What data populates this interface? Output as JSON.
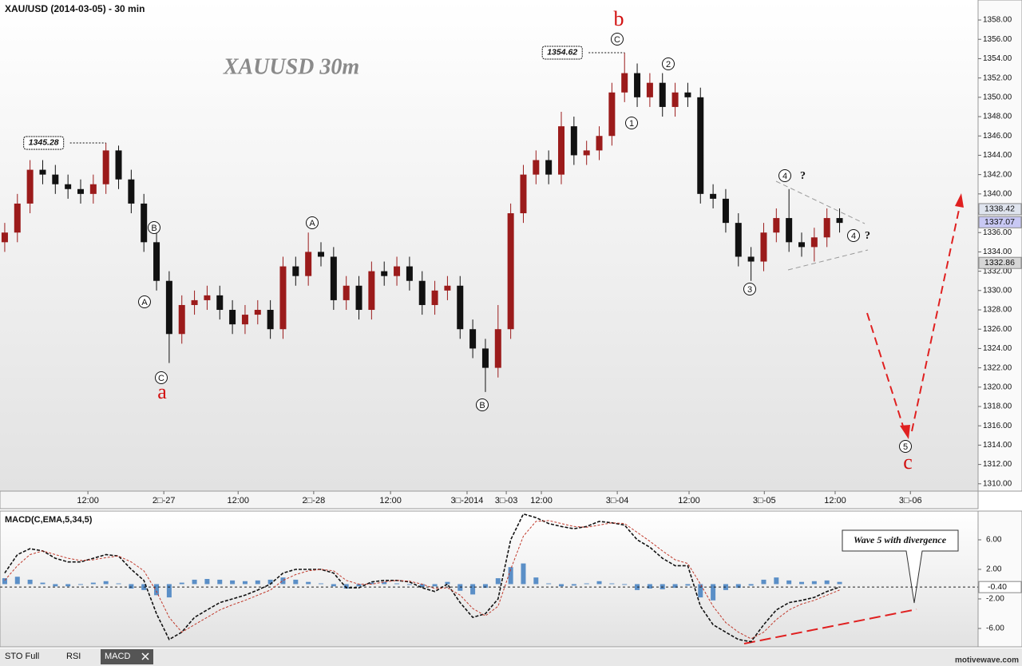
{
  "header": "XAU/USD (2014-03-05) - 30 min",
  "watermark": "XAUUSD  30m",
  "chart_data": [
    {
      "type": "candlestick",
      "x": [
        1.5,
        5.5,
        9.5,
        13.5,
        17.5,
        21.5,
        25.5,
        29.5,
        33.5,
        37.5,
        41.5,
        45.5,
        49.5,
        53.5,
        57.5,
        61.5,
        65.5,
        69.5,
        73.5,
        77.5,
        81.5,
        85.5,
        89.5,
        93.5,
        97.5,
        101.5,
        105.5,
        109.5,
        113.5,
        117.5,
        121.5,
        125.5,
        129.5,
        133.5,
        137.5,
        141.5,
        145.5,
        149.5,
        153.5,
        157.5,
        161.5,
        165.5,
        169.5,
        173.5,
        177.5,
        181.5,
        185.5,
        189.5,
        193.5,
        197.5,
        201.5,
        205.5,
        209.5,
        213.5,
        217.5,
        221.5,
        225.5,
        229.5,
        233.5,
        237.5,
        241.5,
        245.5,
        249.5,
        253.5,
        257.5,
        261.5,
        265.5
      ],
      "open": [
        1335,
        1336,
        1339,
        1342.5,
        1342,
        1341,
        1340.5,
        1340,
        1341,
        1344.5,
        1341.5,
        1339,
        1335,
        1331,
        1325.5,
        1328.5,
        1329,
        1329.5,
        1328,
        1326.5,
        1327.5,
        1328,
        1326,
        1332.5,
        1331.5,
        1334,
        1333.5,
        1329,
        1330.5,
        1328,
        1332,
        1331.5,
        1332.5,
        1331,
        1328.5,
        1330,
        1330.5,
        1326,
        1324,
        1322,
        1326,
        1338,
        1342,
        1343.5,
        1342,
        1347,
        1344,
        1344.5,
        1346,
        1350.5,
        1352.5,
        1350,
        1351.5,
        1349,
        1350.5,
        1350,
        1340,
        1339.5,
        1337,
        1333.5,
        1333,
        1336,
        1337.5,
        1335,
        1334.5,
        1335.5,
        1337.5
      ],
      "high": [
        1337,
        1340,
        1343.5,
        1343.5,
        1343,
        1342,
        1341.5,
        1342,
        1345.28,
        1345,
        1342.5,
        1340,
        1336,
        1332,
        1329.5,
        1330,
        1330.5,
        1330.5,
        1329,
        1328.5,
        1329,
        1329,
        1333.5,
        1333.5,
        1336,
        1335,
        1334.5,
        1331.5,
        1331.5,
        1333,
        1333,
        1333.5,
        1333.5,
        1332,
        1331,
        1331.5,
        1331.5,
        1327,
        1325,
        1328.5,
        1339,
        1343,
        1344.5,
        1344.5,
        1348.5,
        1348,
        1345.5,
        1347,
        1351.5,
        1354.62,
        1353.5,
        1352.5,
        1352.5,
        1351.5,
        1351.5,
        1351,
        1341,
        1340.5,
        1338,
        1334.5,
        1337,
        1338.5,
        1340.5,
        1336,
        1336.5,
        1338.5,
        1338.5
      ],
      "low": [
        1334,
        1335,
        1338,
        1341,
        1340,
        1339.5,
        1339,
        1339,
        1340,
        1340.5,
        1338,
        1334,
        1330,
        1322.5,
        1324.5,
        1327.5,
        1328,
        1327,
        1325.5,
        1325.5,
        1326.5,
        1325,
        1325,
        1330.5,
        1330.5,
        1332.5,
        1328,
        1328,
        1327,
        1327,
        1330.5,
        1330.5,
        1330,
        1327.5,
        1327.5,
        1329,
        1325,
        1323,
        1319.5,
        1321,
        1325,
        1337,
        1341,
        1341,
        1341,
        1343,
        1343,
        1343.5,
        1345,
        1349.5,
        1349,
        1349,
        1348,
        1348,
        1349,
        1339,
        1338.5,
        1336,
        1332.5,
        1331,
        1332,
        1335,
        1334,
        1333.5,
        1333,
        1334.5,
        1336
      ],
      "close": [
        1336,
        1339,
        1342.5,
        1342,
        1341,
        1340.5,
        1340,
        1341,
        1344.5,
        1341.5,
        1339,
        1335,
        1331,
        1325.5,
        1328.5,
        1329,
        1329.5,
        1328,
        1326.5,
        1327.5,
        1328,
        1326,
        1332.5,
        1331.5,
        1334,
        1333.5,
        1329,
        1330.5,
        1328,
        1332,
        1331.5,
        1332.5,
        1331,
        1328.5,
        1330,
        1330.5,
        1326,
        1324,
        1322,
        1326,
        1338,
        1342,
        1343.5,
        1342,
        1347,
        1344,
        1344.5,
        1346,
        1350.5,
        1352.5,
        1350,
        1351.5,
        1349,
        1350.5,
        1350,
        1340,
        1339.5,
        1337,
        1333.5,
        1333,
        1336,
        1337.5,
        1335,
        1334.5,
        1335.5,
        1337.5,
        1337
      ],
      "up_color": "#9b1b1b",
      "down_color": "#111111",
      "xlim": [
        0,
        309.3
      ],
      "xticks": [
        {
          "value": 27.8,
          "label": "12:00"
        },
        {
          "value": 51.8,
          "label": "2□-27"
        },
        {
          "value": 75.3,
          "label": "12:00"
        },
        {
          "value": 99.2,
          "label": "2□-28"
        },
        {
          "value": 123.5,
          "label": "12:00"
        },
        {
          "value": 147.7,
          "label": "3□-2014"
        },
        {
          "value": 160.1,
          "label": "3□-03"
        },
        {
          "value": 171.2,
          "label": "12:00"
        },
        {
          "value": 195.2,
          "label": "3□-04"
        },
        {
          "value": 217.9,
          "label": "12:00"
        },
        {
          "value": 241.7,
          "label": "3□-05"
        },
        {
          "value": 264.1,
          "label": "12:00"
        },
        {
          "value": 287.9,
          "label": "3□-06"
        }
      ],
      "ylim": [
        1309.24,
        1360.07
      ],
      "yticks": [
        {
          "value": 1310,
          "label": "1310.00"
        },
        {
          "value": 1312,
          "label": "1312.00"
        },
        {
          "value": 1314,
          "label": "1314.00"
        },
        {
          "value": 1316,
          "label": "1316.00"
        },
        {
          "value": 1318,
          "label": "1318.00"
        },
        {
          "value": 1320,
          "label": "1320.00"
        },
        {
          "value": 1322,
          "label": "1322.00"
        },
        {
          "value": 1324,
          "label": "1324.00"
        },
        {
          "value": 1326,
          "label": "1326.00"
        },
        {
          "value": 1328,
          "label": "1328.00"
        },
        {
          "value": 1330,
          "label": "1330.00"
        },
        {
          "value": 1332,
          "label": "1332.00"
        },
        {
          "value": 1334,
          "label": "1334.00"
        },
        {
          "value": 1336,
          "label": "1336.00"
        },
        {
          "value": 1338,
          "label": "1338.00"
        },
        {
          "value": 1340,
          "label": "1340.00"
        },
        {
          "value": 1342,
          "label": "1342.00"
        },
        {
          "value": 1344,
          "label": "1344.00"
        },
        {
          "value": 1346,
          "label": "1346.00"
        },
        {
          "value": 1348,
          "label": "1348.00"
        },
        {
          "value": 1350,
          "label": "1350.00"
        },
        {
          "value": 1352,
          "label": "1352.00"
        },
        {
          "value": 1354,
          "label": "1354.00"
        },
        {
          "value": 1356,
          "label": "1356.00"
        },
        {
          "value": 1358,
          "label": "1358.00"
        }
      ],
      "grid": false,
      "price_tags": [
        {
          "value": 1338.42,
          "color": "#dfe4ee"
        },
        {
          "value": 1337.07,
          "color": "#c8c8f4"
        },
        {
          "value": 1332.86,
          "color": "#d6d6d6"
        }
      ],
      "price_boxes": [
        {
          "value": 1345.28,
          "x": 33.5
        },
        {
          "value": 1354.62,
          "x": 197.5
        }
      ],
      "wave_degree_labels": [
        "a",
        "b",
        "c"
      ],
      "wave_circled_labels": [
        "B",
        "A",
        "C",
        "A",
        "B",
        "C",
        "1",
        "2",
        "3",
        "4",
        "4",
        "5"
      ],
      "question_marks": [
        "?",
        "?"
      ]
    },
    {
      "type": "macd",
      "title": "MACD(C,EMA,5,34,5)",
      "x": [
        1.5,
        5.5,
        9.5,
        13.5,
        17.5,
        21.5,
        25.5,
        29.5,
        33.5,
        37.5,
        41.5,
        45.5,
        49.5,
        53.5,
        57.5,
        61.5,
        65.5,
        69.5,
        73.5,
        77.5,
        81.5,
        85.5,
        89.5,
        93.5,
        97.5,
        101.5,
        105.5,
        109.5,
        113.5,
        117.5,
        121.5,
        125.5,
        129.5,
        133.5,
        137.5,
        141.5,
        145.5,
        149.5,
        153.5,
        157.5,
        161.5,
        165.5,
        169.5,
        173.5,
        177.5,
        181.5,
        185.5,
        189.5,
        193.5,
        197.5,
        201.5,
        205.5,
        209.5,
        213.5,
        217.5,
        221.5,
        225.5,
        229.5,
        233.5,
        237.5,
        241.5,
        245.5,
        249.5,
        253.5,
        257.5,
        261.5,
        265.5
      ],
      "series": [
        {
          "color": "#111111",
          "values": [
            1.5,
            4,
            4.8,
            4.5,
            3.5,
            3,
            3,
            3.5,
            4,
            3.8,
            2,
            0.5,
            -4,
            -7.5,
            -6.5,
            -4.5,
            -3.5,
            -2.5,
            -2,
            -1.5,
            -0.8,
            0,
            1.5,
            2,
            2,
            2,
            1.5,
            -0.5,
            -0.5,
            0.3,
            0.5,
            0.5,
            0.3,
            -0.5,
            -1,
            0,
            -2.5,
            -4.5,
            -4,
            -2,
            6,
            9.5,
            9,
            8.2,
            7.8,
            7.5,
            7.8,
            8.5,
            8.3,
            8,
            6,
            5,
            3.5,
            2.5,
            2.5,
            -3,
            -5.5,
            -6.5,
            -7.5,
            -7.8,
            -5.5,
            -3.5,
            -2.5,
            -2.2,
            -1.8,
            -1,
            -0.4
          ]
        },
        {
          "color": "#c0392b",
          "values": [
            0.5,
            2.5,
            4,
            4.5,
            4,
            3.5,
            3.2,
            3.3,
            3.6,
            3.8,
            3,
            1.8,
            -1,
            -4.5,
            -6.5,
            -5.5,
            -4.5,
            -3.5,
            -2.8,
            -2.2,
            -1.5,
            -0.8,
            0.5,
            1.3,
            1.8,
            2,
            1.8,
            0.5,
            0,
            0,
            0.3,
            0.5,
            0.4,
            0,
            -0.6,
            -0.5,
            -1.5,
            -3.3,
            -4.3,
            -3,
            2,
            6.5,
            8.5,
            8.6,
            8.2,
            7.8,
            7.7,
            8,
            8.3,
            8.2,
            7,
            5.8,
            4.5,
            3.3,
            2.8,
            0,
            -3,
            -5.2,
            -6.5,
            -7.4,
            -6.5,
            -4.8,
            -3.5,
            -2.7,
            -2.2,
            -1.5,
            -0.8
          ]
        }
      ],
      "histogram": {
        "color": "#5b8fc7",
        "values": [
          0.8,
          1,
          0.6,
          0.2,
          -0.3,
          -0.3,
          -0.1,
          0.2,
          0.4,
          0.1,
          -0.6,
          -0.8,
          -1.5,
          -1.8,
          0.2,
          0.6,
          0.7,
          0.6,
          0.5,
          0.4,
          0.5,
          0.6,
          0.9,
          0.6,
          0.3,
          0.1,
          -0.3,
          -0.6,
          -0.3,
          0.2,
          0.3,
          0.1,
          -0.1,
          -0.4,
          -0.3,
          0.3,
          -0.9,
          -1.4,
          -0.5,
          0.8,
          2.3,
          2.8,
          0.9,
          0.1,
          -0.3,
          -0.2,
          0.1,
          0.4,
          0.1,
          -0.1,
          -0.8,
          -0.6,
          -0.7,
          -0.5,
          -0.2,
          -1.8,
          -2.2,
          -0.8,
          -0.5,
          -0.2,
          0.6,
          0.9,
          0.5,
          0.3,
          0.4,
          0.5,
          0.3
        ]
      },
      "xlim": [
        0,
        309.3
      ],
      "ylim": [
        -8.49,
        9.89
      ],
      "yticks": [
        {
          "value": -6,
          "label": "-6.00"
        },
        {
          "value": -2,
          "label": "-2.00"
        },
        {
          "value": 2,
          "label": "2.00"
        },
        {
          "value": 6,
          "label": "6.00"
        }
      ],
      "price_tag": {
        "value": -0.4,
        "label": "-0.40"
      },
      "annotation": "Wave 5 with divergence"
    }
  ],
  "tabs": [
    "STO Full",
    "RSI",
    "MACD"
  ],
  "footer": "motivewave.com"
}
